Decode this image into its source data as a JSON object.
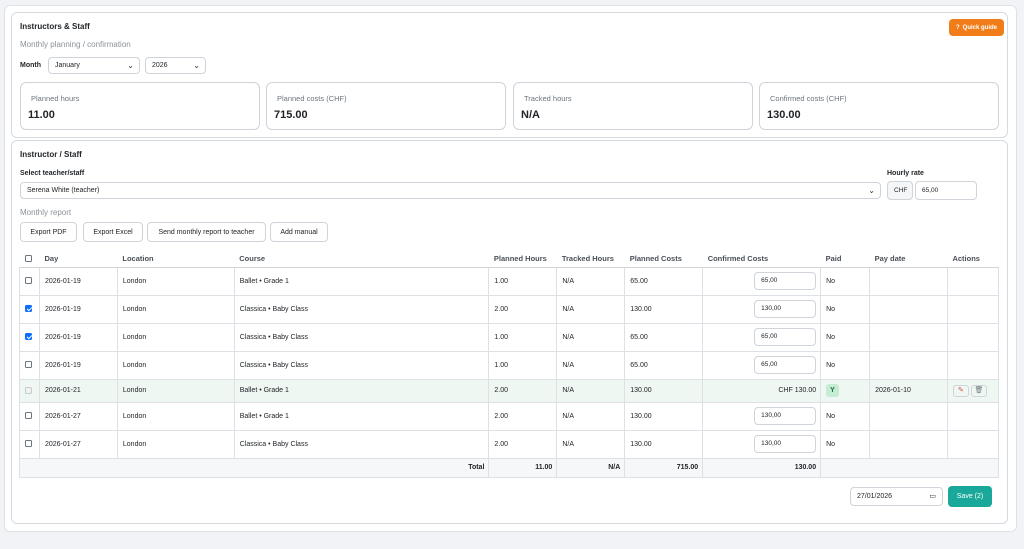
{
  "header": {
    "title": "Instructors & Staff",
    "subtitle": "Monthly planning / confirmation",
    "quick_guide": "Quick guide",
    "month_label": "Month",
    "month_value": "January",
    "year_value": "2026"
  },
  "stats": [
    {
      "label": "Planned hours",
      "value": "11.00"
    },
    {
      "label": "Planned costs (CHF)",
      "value": "715.00"
    },
    {
      "label": "Tracked hours",
      "value": "N/A"
    },
    {
      "label": "Confirmed costs (CHF)",
      "value": "130.00"
    }
  ],
  "staff": {
    "title": "Instructor / Staff",
    "select_label": "Select teacher/staff",
    "select_value": "Serena White (teacher)",
    "rate_label": "Hourly rate",
    "rate_currency": "CHF",
    "rate_value": "65,00",
    "report_label": "Monthly report",
    "buttons": [
      "Export PDF",
      "Export Excel",
      "Send monthly report to teacher",
      "Add manual"
    ]
  },
  "table": {
    "headers": [
      "Day",
      "Location",
      "Course",
      "Planned Hours",
      "Tracked Hours",
      "Planned Costs",
      "Confirmed Costs",
      "Paid",
      "Pay date",
      "Actions"
    ],
    "rows": [
      {
        "day": "2026-01-19",
        "location": "London",
        "course": "Ballet • Grade 1",
        "planned": "1.00",
        "tracked": "N/A",
        "pcost": "65.00",
        "ccost": "65,00",
        "paid": "No",
        "paydate": "",
        "checked": false
      },
      {
        "day": "2026-01-19",
        "location": "London",
        "course": "Classica • Baby Class",
        "planned": "2.00",
        "tracked": "N/A",
        "pcost": "130.00",
        "ccost": "130,00",
        "paid": "No",
        "paydate": "",
        "checked": true
      },
      {
        "day": "2026-01-19",
        "location": "London",
        "course": "Classica • Baby Class",
        "planned": "1.00",
        "tracked": "N/A",
        "pcost": "65.00",
        "ccost": "65,00",
        "paid": "No",
        "paydate": "",
        "checked": true
      },
      {
        "day": "2026-01-19",
        "location": "London",
        "course": "Classica • Baby Class",
        "planned": "1.00",
        "tracked": "N/A",
        "pcost": "65.00",
        "ccost": "65,00",
        "paid": "No",
        "paydate": "",
        "checked": false
      },
      {
        "day": "2026-01-21",
        "location": "London",
        "course": "Ballet • Grade 1",
        "planned": "2.00",
        "tracked": "N/A",
        "pcost": "130.00",
        "ccost": "CHF 130.00",
        "paid": "Y",
        "paydate": "2026-01-10",
        "checked": false
      },
      {
        "day": "2026-01-27",
        "location": "London",
        "course": "Ballet • Grade 1",
        "planned": "2.00",
        "tracked": "N/A",
        "pcost": "130.00",
        "ccost": "130,00",
        "paid": "No",
        "paydate": "",
        "checked": false
      },
      {
        "day": "2026-01-27",
        "location": "London",
        "course": "Classica • Baby Class",
        "planned": "2.00",
        "tracked": "N/A",
        "pcost": "130.00",
        "ccost": "130,00",
        "paid": "No",
        "paydate": "",
        "checked": false
      }
    ],
    "total": {
      "label": "Total",
      "planned": "11.00",
      "tracked": "N/A",
      "pcost": "715.00",
      "ccost": "130.00"
    }
  },
  "footer": {
    "date_value": "27/01/2026",
    "save_label": "Save (2)"
  },
  "colors": {
    "accent": "#1aa89b",
    "guide": "#f07d1a",
    "paid_badge": "#c7ecd6"
  }
}
